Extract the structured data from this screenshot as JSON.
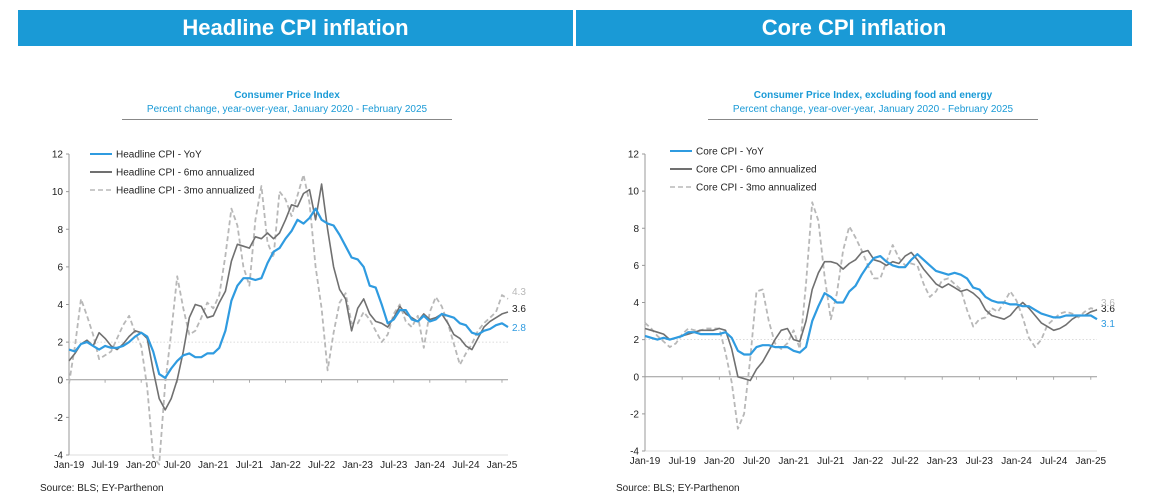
{
  "banners": {
    "left": "Headline CPI inflation",
    "right": "Core CPI inflation"
  },
  "chart_data": [
    {
      "type": "line",
      "title": "Consumer Price Index",
      "subtitle": "Percent change, year-over-year,  January 2020 - February 2025",
      "source": "Source: BLS; EY-Parthenon",
      "ylim": [
        -4,
        12
      ],
      "yticks": [
        -4,
        -2,
        0,
        2,
        4,
        6,
        8,
        10,
        12
      ],
      "x_start": "Jan-19",
      "x_end_index": 73,
      "xticks": [
        {
          "label": "Jan-19",
          "index": 0
        },
        {
          "label": "Jul-19",
          "index": 6
        },
        {
          "label": "Jan-20",
          "index": 12
        },
        {
          "label": "Jul-20",
          "index": 18
        },
        {
          "label": "Jan-21",
          "index": 24
        },
        {
          "label": "Jul-21",
          "index": 30
        },
        {
          "label": "Jan-22",
          "index": 36
        },
        {
          "label": "Jul-22",
          "index": 42
        },
        {
          "label": "Jan-23",
          "index": 48
        },
        {
          "label": "Jul-23",
          "index": 54
        },
        {
          "label": "Jan-24",
          "index": 60
        },
        {
          "label": "Jul-24",
          "index": 66
        },
        {
          "label": "Jan-25",
          "index": 72
        }
      ],
      "reference_line": 2,
      "legend_position": "top-left",
      "series": [
        {
          "name": "Headline CPI - YoY",
          "color": "#2f9be0",
          "style": "solid",
          "end_label": "2.8",
          "values": [
            1.6,
            1.5,
            1.9,
            2.0,
            1.8,
            1.6,
            1.8,
            1.7,
            1.7,
            1.8,
            2.0,
            2.3,
            2.5,
            2.3,
            1.5,
            0.3,
            0.1,
            0.6,
            1.0,
            1.3,
            1.4,
            1.2,
            1.2,
            1.4,
            1.4,
            1.7,
            2.6,
            4.2,
            5.0,
            5.4,
            5.4,
            5.3,
            5.4,
            6.2,
            6.8,
            7.0,
            7.5,
            7.9,
            8.5,
            8.3,
            8.6,
            9.1,
            8.5,
            8.3,
            8.2,
            7.7,
            7.1,
            6.5,
            6.4,
            6.0,
            5.0,
            4.9,
            4.0,
            3.0,
            3.2,
            3.7,
            3.7,
            3.2,
            3.1,
            3.4,
            3.1,
            3.2,
            3.5,
            3.4,
            3.3,
            3.0,
            2.9,
            2.5,
            2.4,
            2.6,
            2.7,
            2.9,
            3.0,
            2.8
          ]
        },
        {
          "name": "Headline CPI - 6mo annualized",
          "color": "#707070",
          "style": "solid",
          "end_label": "3.6",
          "values": [
            1.0,
            1.4,
            1.9,
            2.1,
            1.8,
            2.5,
            2.2,
            1.8,
            1.6,
            1.9,
            2.3,
            2.6,
            2.5,
            2.2,
            0.5,
            -1.0,
            -1.6,
            -1.0,
            0.0,
            1.5,
            3.3,
            4.0,
            3.9,
            3.3,
            3.4,
            4.1,
            4.7,
            6.3,
            7.2,
            7.1,
            7.0,
            7.6,
            7.5,
            7.8,
            7.5,
            7.8,
            8.5,
            9.3,
            9.2,
            9.9,
            10.1,
            8.5,
            10.4,
            8.0,
            6.0,
            4.8,
            4.3,
            2.6,
            3.8,
            4.3,
            3.5,
            3.1,
            3.0,
            2.8,
            3.3,
            3.9,
            3.5,
            3.3,
            3.1,
            3.5,
            3.2,
            3.3,
            3.5,
            3.0,
            2.4,
            2.2,
            1.8,
            1.6,
            2.2,
            2.8,
            3.1,
            3.3,
            3.5,
            3.6
          ]
        },
        {
          "name": "Headline CPI - 3mo annualized",
          "color": "#b8b8b8",
          "style": "dashed",
          "end_label": "4.3",
          "values": [
            -0.2,
            1.8,
            4.3,
            3.4,
            2.4,
            1.1,
            1.3,
            1.5,
            2.2,
            2.9,
            3.4,
            2.5,
            1.8,
            -0.4,
            -4.1,
            -4.5,
            -0.2,
            2.5,
            5.5,
            3.8,
            2.4,
            2.6,
            3.3,
            4.1,
            3.8,
            4.5,
            6.6,
            9.1,
            8.2,
            6.0,
            5.0,
            8.5,
            10.3,
            7.3,
            6.5,
            10.0,
            9.6,
            8.7,
            9.8,
            10.9,
            9.4,
            6.0,
            3.8,
            0.5,
            2.5,
            4.1,
            4.6,
            3.0,
            3.0,
            3.6,
            3.2,
            2.6,
            2.0,
            2.4,
            3.5,
            4.0,
            3.1,
            2.8,
            3.4,
            1.7,
            3.6,
            4.4,
            3.9,
            3.0,
            1.9,
            0.8,
            1.4,
            1.9,
            2.6,
            3.0,
            3.3,
            3.6,
            4.5,
            4.3
          ]
        }
      ]
    },
    {
      "type": "line",
      "title": "Consumer Price Index, excluding food and energy",
      "subtitle": "Percent change, year-over-year,  January 2020 - February 2025",
      "source": "Source: BLS; EY-Parthenon",
      "ylim": [
        -4,
        12
      ],
      "yticks": [
        -4,
        -2,
        0,
        2,
        4,
        6,
        8,
        10,
        12
      ],
      "x_start": "Jan-19",
      "x_end_index": 73,
      "xticks": [
        {
          "label": "Jan-19",
          "index": 0
        },
        {
          "label": "Jul-19",
          "index": 6
        },
        {
          "label": "Jan-20",
          "index": 12
        },
        {
          "label": "Jul-20",
          "index": 18
        },
        {
          "label": "Jan-21",
          "index": 24
        },
        {
          "label": "Jul-21",
          "index": 30
        },
        {
          "label": "Jan-22",
          "index": 36
        },
        {
          "label": "Jul-22",
          "index": 42
        },
        {
          "label": "Jan-23",
          "index": 48
        },
        {
          "label": "Jul-23",
          "index": 54
        },
        {
          "label": "Jan-24",
          "index": 60
        },
        {
          "label": "Jul-24",
          "index": 66
        },
        {
          "label": "Jan-25",
          "index": 72
        }
      ],
      "reference_line": 2,
      "legend_position": "top-left",
      "series": [
        {
          "name": "Core CPI - YoY",
          "color": "#2f9be0",
          "style": "solid",
          "end_label": "3.1",
          "values": [
            2.2,
            2.1,
            2.0,
            2.1,
            2.0,
            2.1,
            2.2,
            2.4,
            2.4,
            2.3,
            2.3,
            2.3,
            2.3,
            2.4,
            2.1,
            1.4,
            1.2,
            1.2,
            1.6,
            1.7,
            1.7,
            1.6,
            1.6,
            1.6,
            1.4,
            1.3,
            1.6,
            3.0,
            3.8,
            4.5,
            4.3,
            4.0,
            4.0,
            4.6,
            4.9,
            5.5,
            6.0,
            6.4,
            6.5,
            6.2,
            6.0,
            5.9,
            5.9,
            6.3,
            6.6,
            6.3,
            6.0,
            5.7,
            5.6,
            5.5,
            5.6,
            5.5,
            5.3,
            4.8,
            4.7,
            4.3,
            4.1,
            4.0,
            4.0,
            3.9,
            3.9,
            3.8,
            3.8,
            3.6,
            3.4,
            3.3,
            3.2,
            3.2,
            3.3,
            3.3,
            3.3,
            3.3,
            3.3,
            3.1
          ]
        },
        {
          "name": "Core CPI - 6mo annualized",
          "color": "#707070",
          "style": "solid",
          "end_label": "3.6",
          "values": [
            2.6,
            2.5,
            2.4,
            2.3,
            2.0,
            2.1,
            2.2,
            2.3,
            2.4,
            2.5,
            2.5,
            2.5,
            2.6,
            2.5,
            1.5,
            0.0,
            -0.1,
            -0.2,
            0.4,
            0.8,
            1.4,
            2.0,
            2.5,
            2.6,
            2.0,
            1.9,
            3.0,
            4.7,
            5.6,
            6.2,
            6.2,
            6.1,
            5.8,
            6.1,
            6.3,
            6.7,
            6.8,
            6.3,
            6.2,
            6.0,
            6.2,
            6.1,
            6.5,
            6.7,
            6.3,
            5.8,
            5.4,
            5.0,
            4.8,
            5.0,
            4.8,
            4.6,
            4.7,
            4.5,
            4.2,
            3.6,
            3.3,
            3.2,
            3.1,
            3.3,
            3.7,
            4.0,
            3.7,
            3.3,
            2.9,
            2.7,
            2.5,
            2.6,
            2.8,
            3.1,
            3.3,
            3.3,
            3.5,
            3.6
          ]
        },
        {
          "name": "Core CPI - 3mo annualized",
          "color": "#b8b8b8",
          "style": "dashed",
          "end_label": "3.6",
          "values": [
            2.9,
            2.6,
            2.2,
            1.9,
            1.6,
            1.8,
            2.3,
            2.6,
            2.5,
            2.5,
            2.6,
            2.6,
            2.6,
            1.3,
            -0.3,
            -2.8,
            -2.0,
            1.0,
            4.6,
            4.7,
            3.0,
            1.8,
            1.5,
            1.8,
            2.5,
            1.5,
            5.0,
            9.4,
            8.4,
            5.4,
            3.1,
            4.5,
            6.8,
            8.1,
            7.5,
            6.8,
            6.0,
            5.3,
            5.3,
            6.2,
            7.1,
            6.4,
            6.0,
            6.1,
            6.0,
            5.0,
            4.3,
            4.6,
            5.2,
            5.3,
            5.0,
            4.7,
            3.6,
            2.7,
            3.1,
            3.2,
            3.7,
            3.5,
            4.0,
            4.6,
            4.1,
            3.2,
            2.1,
            1.6,
            2.0,
            2.8,
            3.1,
            3.4,
            3.5,
            3.4,
            3.2,
            3.5,
            3.7,
            3.6
          ]
        }
      ]
    }
  ]
}
